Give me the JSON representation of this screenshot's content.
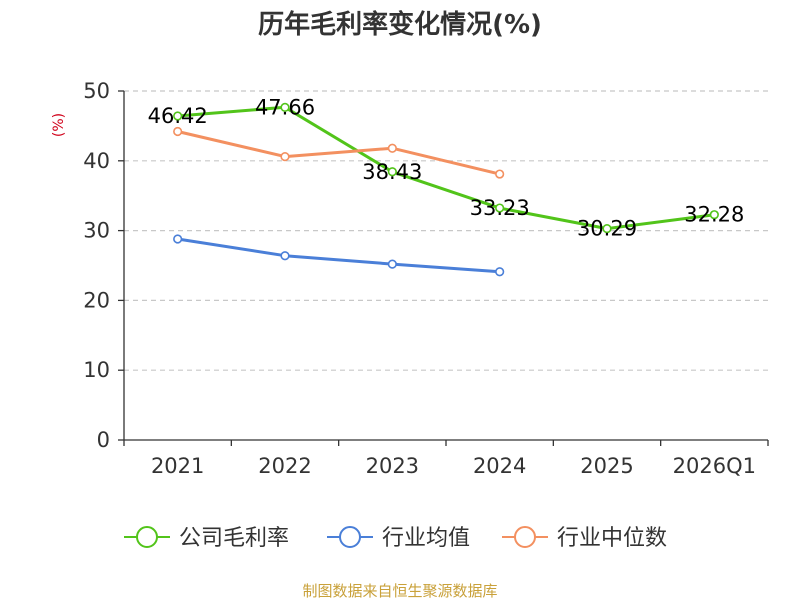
{
  "chart_data": {
    "type": "line",
    "title": "历年毛利率变化情况(%)",
    "ylabel": "(%)",
    "xlabel": "",
    "categories": [
      "2021",
      "2022",
      "2023",
      "2024",
      "2025",
      "2026Q1"
    ],
    "ylim": [
      0,
      50
    ],
    "yticks": [
      0,
      10,
      20,
      30,
      40,
      50
    ],
    "grid": true,
    "legend_position": "bottom",
    "series": [
      {
        "name": "公司毛利率",
        "color": "#52c41a",
        "values": [
          46.42,
          47.66,
          38.43,
          33.23,
          30.29,
          32.28
        ],
        "labels": [
          "46.42",
          "47.66",
          "38.43",
          "33.23",
          "30.29",
          "32.28"
        ]
      },
      {
        "name": "行业均值",
        "color": "#4a7fd8",
        "values": [
          28.8,
          26.4,
          25.2,
          24.1,
          null,
          null
        ]
      },
      {
        "name": "行业中位数",
        "color": "#f39060",
        "values": [
          44.2,
          40.6,
          41.8,
          38.1,
          null,
          null
        ]
      }
    ]
  },
  "source_text": "制图数据来自恒生聚源数据库"
}
